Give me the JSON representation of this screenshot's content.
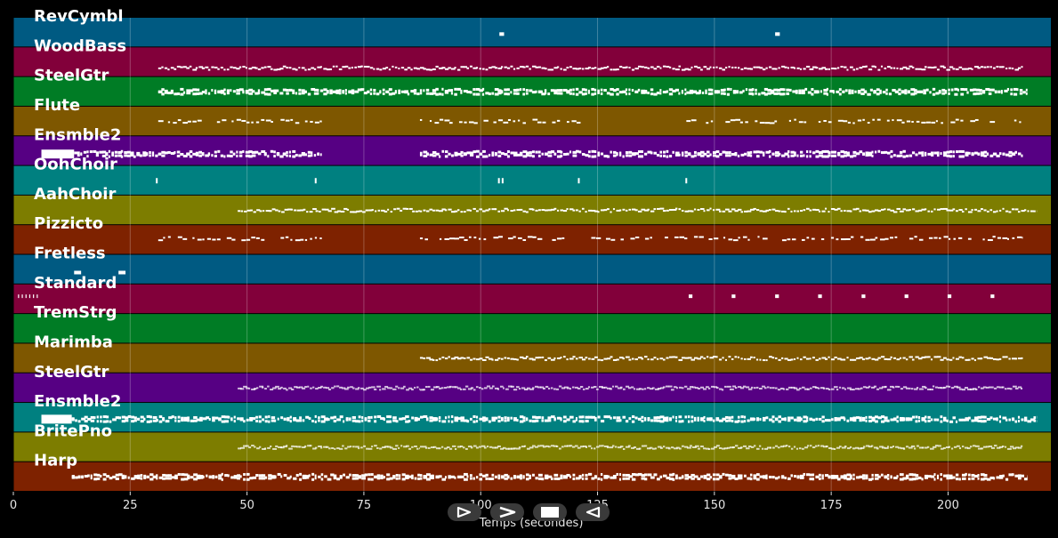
{
  "chart_data": {
    "type": "pianoroll",
    "xlabel": "Temps (secondes)",
    "xlim": [
      0,
      222
    ],
    "xticks": [
      0,
      25,
      50,
      75,
      100,
      125,
      150,
      175,
      200
    ],
    "grid": true,
    "tracks": [
      {
        "name": "RevCymbl",
        "color": "#005a82",
        "notes": [
          [
            104,
            105,
            0.55
          ],
          [
            163,
            164,
            0.55
          ]
        ]
      },
      {
        "name": "WoodBass",
        "color": "#82003a",
        "notes": [
          [
            31,
            87,
            0.7,
            "dense"
          ],
          [
            87,
            216,
            0.7,
            "dense"
          ]
        ]
      },
      {
        "name": "SteelGtr",
        "color": "#007c25",
        "notes": [
          [
            31,
            144,
            0.5,
            "dense-thick"
          ],
          [
            144,
            217,
            0.5,
            "dense-thick"
          ]
        ]
      },
      {
        "name": "Flute",
        "color": "#7e5700",
        "notes": [
          [
            31,
            66,
            0.5,
            "sparse"
          ],
          [
            87,
            123,
            0.5,
            "sparse"
          ],
          [
            144,
            216,
            0.5,
            "sparse"
          ]
        ]
      },
      {
        "name": "Ensmble2",
        "color": "#560083",
        "notes": [
          [
            6,
            13,
            0.6,
            "block"
          ],
          [
            13,
            66,
            0.6,
            "dense-thick"
          ],
          [
            87,
            216,
            0.6,
            "dense-thick"
          ]
        ]
      },
      {
        "name": "OohChoir",
        "color": "#008080",
        "notes": [
          [
            30.5,
            30.7,
            0.5,
            "tick"
          ],
          [
            64.5,
            64.7,
            0.5,
            "tick"
          ],
          [
            103.7,
            103.9,
            0.5,
            "tick"
          ],
          [
            104.5,
            104.7,
            0.5,
            "tick"
          ],
          [
            120.8,
            121,
            0.5,
            "tick"
          ],
          [
            143.8,
            144,
            0.5,
            "tick"
          ]
        ]
      },
      {
        "name": "AahChoir",
        "color": "#7d7d00",
        "notes": [
          [
            48,
            87,
            0.5,
            "dense"
          ],
          [
            87,
            219,
            0.5,
            "dense"
          ]
        ]
      },
      {
        "name": "Pizzicto",
        "color": "#7e2200",
        "notes": [
          [
            31,
            66,
            0.45,
            "sparse"
          ],
          [
            87,
            216,
            0.45,
            "sparse"
          ]
        ]
      },
      {
        "name": "Fretless",
        "color": "#005a82",
        "notes": [
          [
            13,
            14.5,
            0.6
          ],
          [
            22.5,
            24,
            0.6
          ]
        ]
      },
      {
        "name": "Standard",
        "color": "#82003a",
        "notes": [
          [
            144.5,
            145.3,
            0.4
          ],
          [
            153.7,
            154.5,
            0.4
          ],
          [
            163,
            163.8,
            0.4
          ],
          [
            172.2,
            173,
            0.4
          ],
          [
            181.5,
            182.3,
            0.4
          ],
          [
            190.7,
            191.5,
            0.4
          ],
          [
            199.9,
            200.7,
            0.4
          ],
          [
            209.1,
            209.9,
            0.4
          ],
          [
            1,
            5.5,
            0.4,
            "tick"
          ]
        ]
      },
      {
        "name": "TremStrg",
        "color": "#007c25",
        "notes": []
      },
      {
        "name": "Marimba",
        "color": "#7e5700",
        "notes": [
          [
            87,
            216,
            0.5,
            "dense"
          ]
        ]
      },
      {
        "name": "SteelGtr",
        "color": "#560083",
        "notes": [
          [
            48,
            87,
            0.5,
            "light"
          ],
          [
            87,
            216,
            0.5,
            "light"
          ]
        ]
      },
      {
        "name": "Ensmble2",
        "color": "#008080",
        "notes": [
          [
            6,
            12.5,
            0.55,
            "block"
          ],
          [
            12.5,
            87,
            0.55,
            "dense-thick"
          ],
          [
            87,
            219,
            0.55,
            "dense-thick"
          ]
        ]
      },
      {
        "name": "BritePno",
        "color": "#7d7d00",
        "notes": [
          [
            48,
            87,
            0.5,
            "light"
          ],
          [
            87,
            216,
            0.5,
            "light"
          ]
        ]
      },
      {
        "name": "Harp",
        "color": "#7e2200",
        "notes": [
          [
            12.5,
            87,
            0.5,
            "dense-thick"
          ],
          [
            87,
            217,
            0.5,
            "dense-thick"
          ]
        ]
      }
    ]
  },
  "controls": [
    {
      "name": "play-button",
      "icon": "play-outline-icon"
    },
    {
      "name": "fast-forward-button",
      "icon": "chevron-right-icon"
    },
    {
      "name": "stop-button",
      "icon": "stop-square-icon"
    },
    {
      "name": "rewind-button",
      "icon": "play-reverse-icon"
    }
  ]
}
